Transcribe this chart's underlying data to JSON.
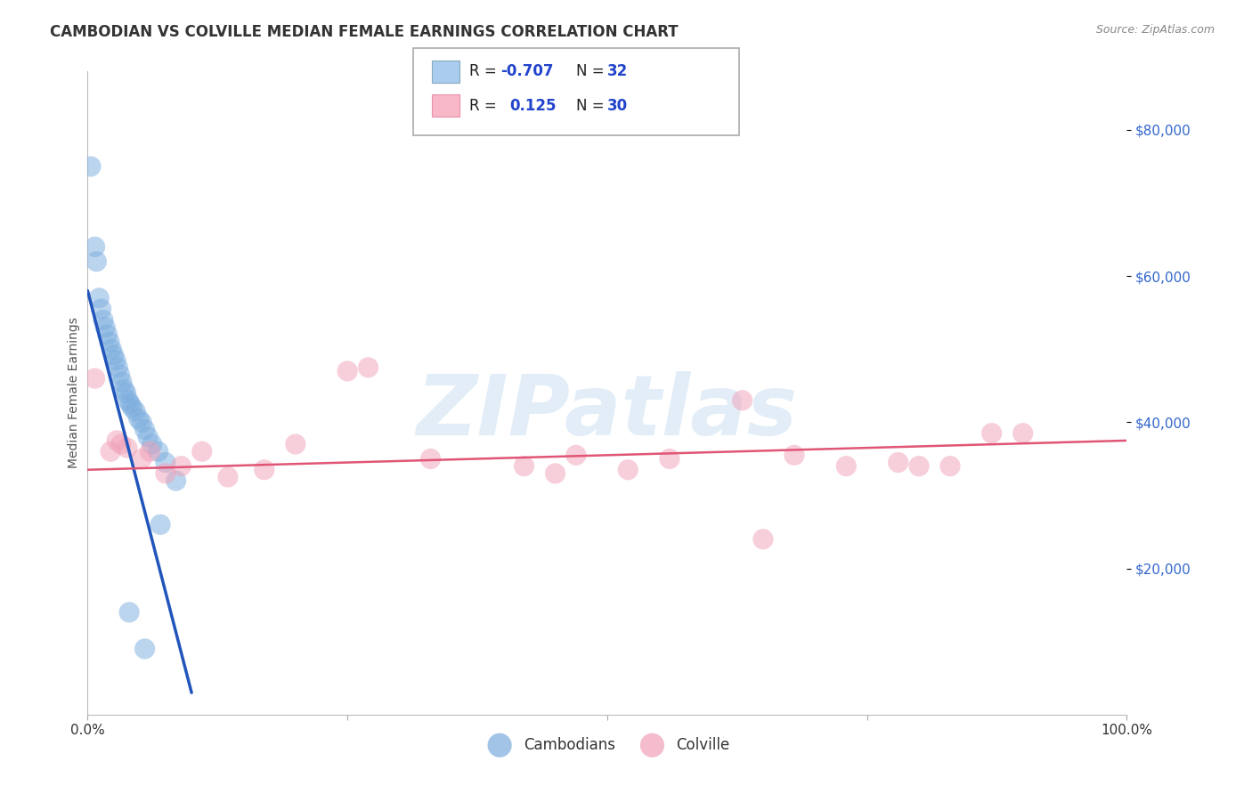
{
  "title": "CAMBODIAN VS COLVILLE MEDIAN FEMALE EARNINGS CORRELATION CHART",
  "source": "Source: ZipAtlas.com",
  "ylabel": "Median Female Earnings",
  "watermark": "ZIPatlas",
  "ytick_labels": [
    "$20,000",
    "$40,000",
    "$60,000",
    "$80,000"
  ],
  "ytick_values": [
    20000,
    40000,
    60000,
    80000
  ],
  "ymin": 0,
  "ymax": 88000,
  "xmin": 0.0,
  "xmax": 100.0,
  "cambodian_color": "#7aacde",
  "colville_color": "#f0a0b8",
  "cambodian_scatter": [
    [
      0.3,
      75000
    ],
    [
      0.7,
      64000
    ],
    [
      0.85,
      62000
    ],
    [
      1.1,
      57000
    ],
    [
      1.3,
      55500
    ],
    [
      1.5,
      54000
    ],
    [
      1.7,
      53000
    ],
    [
      1.9,
      52000
    ],
    [
      2.1,
      51000
    ],
    [
      2.3,
      50000
    ],
    [
      2.5,
      49200
    ],
    [
      2.7,
      48500
    ],
    [
      2.9,
      47500
    ],
    [
      3.1,
      46500
    ],
    [
      3.3,
      45500
    ],
    [
      3.5,
      44500
    ],
    [
      3.7,
      44000
    ],
    [
      3.9,
      43000
    ],
    [
      4.1,
      42500
    ],
    [
      4.3,
      42000
    ],
    [
      4.6,
      41500
    ],
    [
      4.9,
      40500
    ],
    [
      5.2,
      40000
    ],
    [
      5.5,
      39000
    ],
    [
      5.8,
      38000
    ],
    [
      6.2,
      37000
    ],
    [
      6.8,
      36000
    ],
    [
      7.5,
      34500
    ],
    [
      8.5,
      32000
    ],
    [
      4.0,
      14000
    ],
    [
      5.5,
      9000
    ],
    [
      7.0,
      26000
    ]
  ],
  "colville_scatter": [
    [
      0.7,
      46000
    ],
    [
      2.2,
      36000
    ],
    [
      2.8,
      37500
    ],
    [
      3.2,
      37000
    ],
    [
      3.8,
      36500
    ],
    [
      5.2,
      35000
    ],
    [
      6.0,
      36000
    ],
    [
      7.5,
      33000
    ],
    [
      9.0,
      34000
    ],
    [
      11.0,
      36000
    ],
    [
      13.5,
      32500
    ],
    [
      17.0,
      33500
    ],
    [
      20.0,
      37000
    ],
    [
      25.0,
      47000
    ],
    [
      27.0,
      47500
    ],
    [
      33.0,
      35000
    ],
    [
      42.0,
      34000
    ],
    [
      47.0,
      35500
    ],
    [
      52.0,
      33500
    ],
    [
      56.0,
      35000
    ],
    [
      63.0,
      43000
    ],
    [
      68.0,
      35500
    ],
    [
      73.0,
      34000
    ],
    [
      78.0,
      34500
    ],
    [
      83.0,
      34000
    ],
    [
      90.0,
      38500
    ],
    [
      45.0,
      33000
    ],
    [
      65.0,
      24000
    ],
    [
      80.0,
      34000
    ],
    [
      87.0,
      38500
    ]
  ],
  "cambodian_line": [
    [
      0.0,
      58000
    ],
    [
      10.0,
      3000
    ]
  ],
  "colville_line": [
    [
      0.0,
      33500
    ],
    [
      100.0,
      37500
    ]
  ],
  "background_color": "#ffffff",
  "grid_color": "#c8c8c8",
  "title_color": "#333333",
  "title_fontsize": 12,
  "axis_label_fontsize": 10,
  "tick_fontsize": 11,
  "xtick_positions": [
    0,
    25,
    50,
    75,
    100
  ],
  "xtick_labels": [
    "0.0%",
    "",
    "",
    "",
    "100.0%"
  ]
}
